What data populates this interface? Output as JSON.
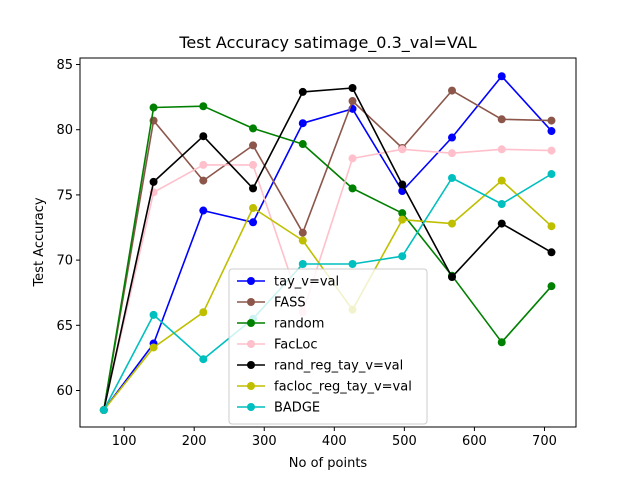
{
  "chart_data": {
    "type": "line",
    "title": "Test Accuracy satimage_0.3_val=VAL",
    "xlabel": "No of points",
    "ylabel": "Test Accuracy",
    "xlim": [
      37,
      745
    ],
    "ylim": [
      57.2,
      85.5
    ],
    "xticks": [
      100,
      200,
      300,
      400,
      500,
      600,
      700
    ],
    "yticks": [
      60,
      65,
      70,
      75,
      80,
      85
    ],
    "grid": false,
    "legend_position": "bottom-center",
    "x": [
      71,
      142,
      213,
      284,
      355,
      426,
      497,
      568,
      639,
      710
    ],
    "series": [
      {
        "name": "tay_v=val",
        "color": "#0000ff",
        "values": [
          58.5,
          63.6,
          73.8,
          72.9,
          80.5,
          81.6,
          75.3,
          79.4,
          84.1,
          79.9
        ]
      },
      {
        "name": "FASS",
        "color": "#8c564b",
        "values": [
          58.5,
          80.7,
          76.1,
          78.8,
          72.1,
          82.2,
          78.6,
          83.0,
          80.8,
          80.7
        ]
      },
      {
        "name": "random",
        "color": "#008000",
        "values": [
          58.5,
          81.7,
          81.8,
          80.1,
          78.9,
          75.5,
          73.6,
          68.8,
          63.7,
          68.0
        ]
      },
      {
        "name": "FacLoc",
        "color": "#ffc0cb",
        "values": [
          58.5,
          75.2,
          77.3,
          77.3,
          66.0,
          77.8,
          78.5,
          78.2,
          78.5,
          78.4
        ]
      },
      {
        "name": "rand_reg_tay_v=val",
        "color": "#000000",
        "values": [
          58.5,
          76.0,
          79.5,
          75.5,
          82.9,
          83.2,
          75.8,
          68.7,
          72.8,
          70.6
        ]
      },
      {
        "name": "facloc_reg_tay_v=val",
        "color": "#bfbf00",
        "values": [
          58.5,
          63.3,
          66.0,
          74.0,
          71.5,
          66.2,
          73.1,
          72.8,
          76.1,
          72.6
        ]
      },
      {
        "name": "BADGE",
        "color": "#00bfbf",
        "values": [
          58.5,
          65.8,
          62.4,
          65.5,
          69.7,
          69.7,
          70.3,
          76.3,
          74.3,
          76.6
        ]
      }
    ]
  }
}
